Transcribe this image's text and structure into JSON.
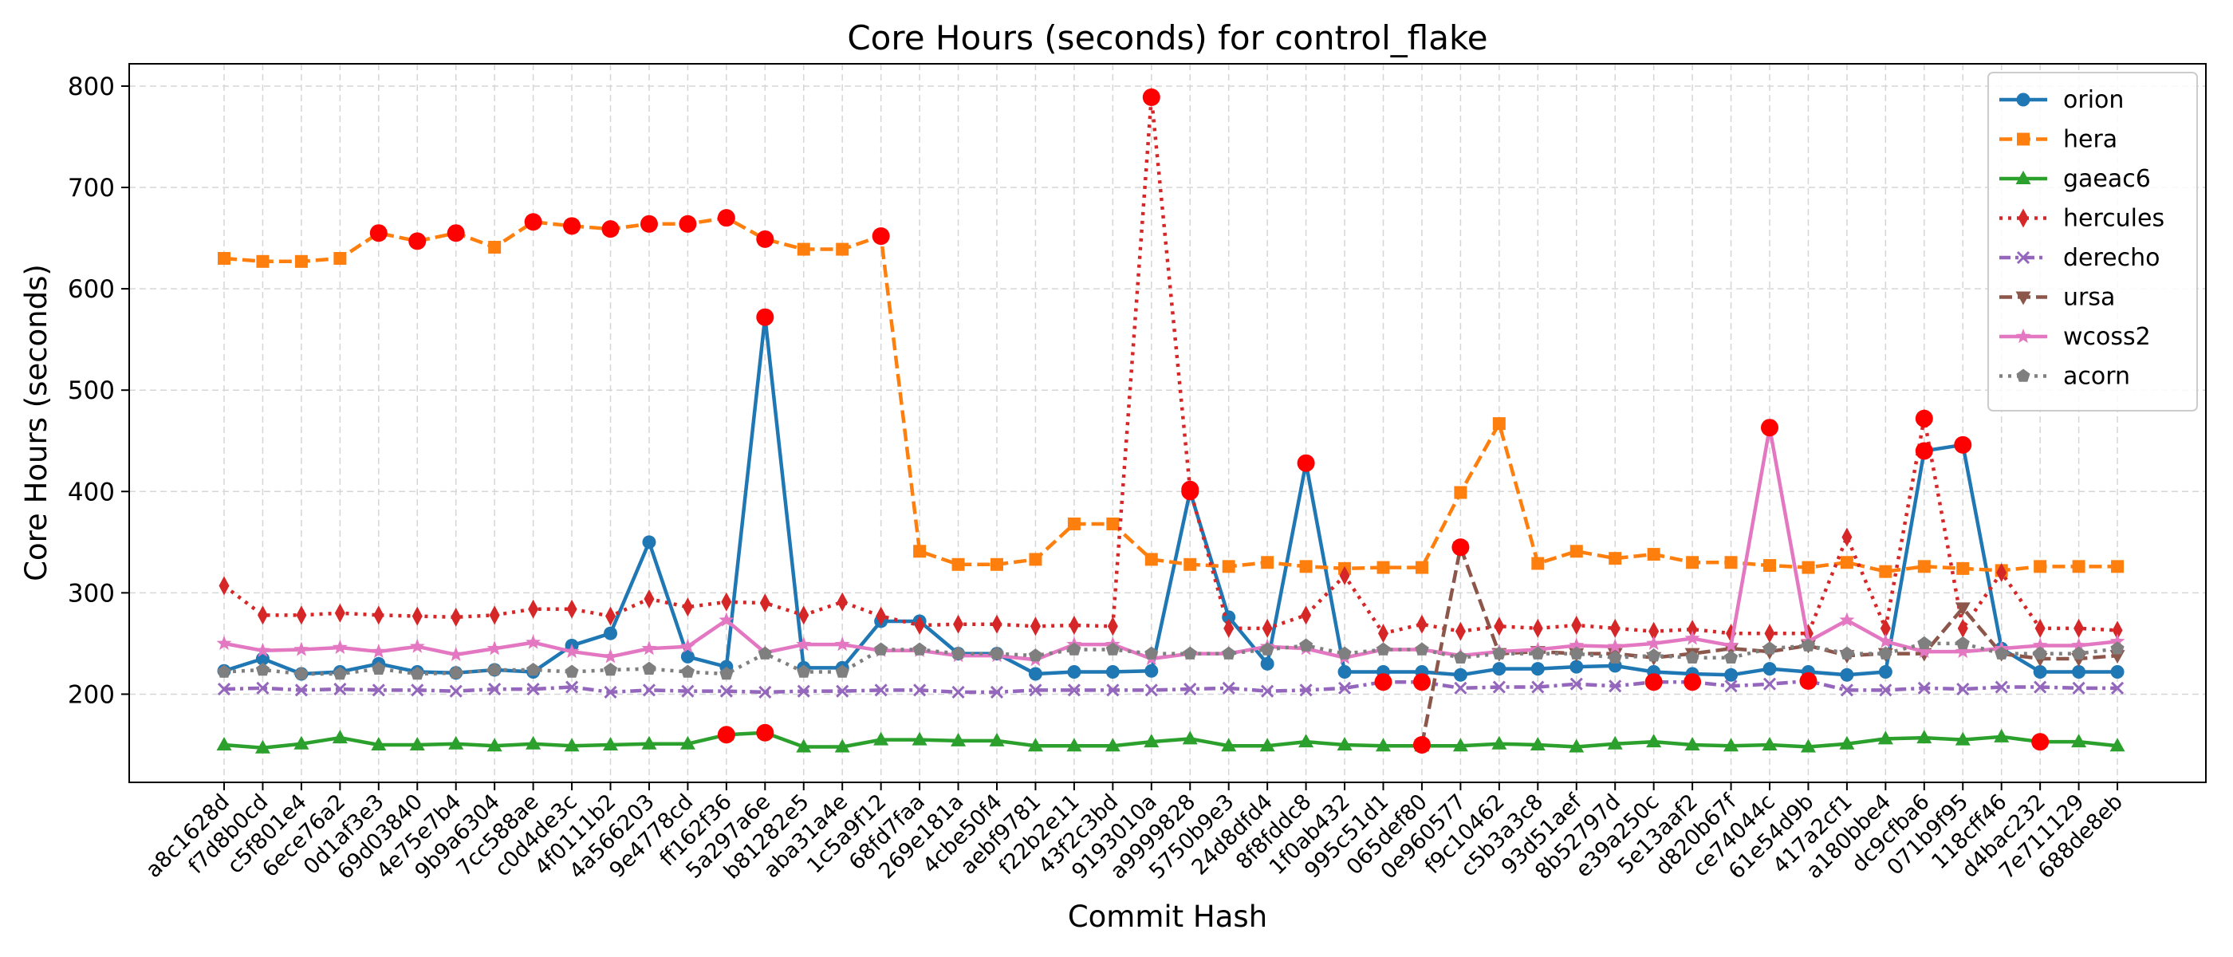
{
  "chart_data": {
    "type": "line",
    "title": "Core Hours (seconds) for control_flake",
    "xlabel": "Commit Hash",
    "ylabel": "Core Hours (seconds)",
    "ylim": [
      113,
      822
    ],
    "yticks": [
      200,
      300,
      400,
      500,
      600,
      700,
      800
    ],
    "grid": true,
    "legend_position": "top-right",
    "outlier_color": "#ff0000",
    "categories": [
      "a8c1628d",
      "f7d8b0cd",
      "c5f801e4",
      "6ece76a2",
      "0d1af3e3",
      "69d03840",
      "4e75e7b4",
      "9b9a6304",
      "7cc588ae",
      "c0d4de3c",
      "4f0111b2",
      "4a566203",
      "9e4778cd",
      "ff162f36",
      "5a297a6e",
      "b81282e5",
      "aba31a4e",
      "1c5a9f12",
      "68fd7faa",
      "269e181a",
      "4cbe50f4",
      "aebf9781",
      "f22b2e11",
      "43f2c3bd",
      "9193010a",
      "a9999828",
      "5750b9e3",
      "24d8dfd4",
      "8f8fddc8",
      "1f0ab432",
      "995c51d1",
      "065def80",
      "0e960577",
      "f9c10462",
      "c5b3a3c8",
      "93d51aef",
      "8b52797d",
      "e39a250c",
      "5e13aaf2",
      "d820b67f",
      "ce74044c",
      "61e54d9b",
      "417a2cf1",
      "a180bbe4",
      "dc9cfba6",
      "071b9f95",
      "118cff46",
      "d4bac232",
      "7e711129",
      "688de8eb"
    ],
    "series": [
      {
        "name": "orion",
        "color": "#1f77b4",
        "dash": "solid",
        "marker": "circle",
        "values": [
          223,
          235,
          220,
          222,
          230,
          222,
          221,
          224,
          222,
          248,
          260,
          350,
          237,
          227,
          572,
          226,
          226,
          272,
          272,
          240,
          240,
          220,
          222,
          222,
          223,
          400,
          276,
          230,
          428,
          222,
          222,
          222,
          219,
          225,
          225,
          227,
          228,
          222,
          220,
          219,
          225,
          222,
          219,
          222,
          440,
          446,
          245,
          222,
          222,
          222
        ],
        "outliers": [
          14,
          25,
          28,
          44,
          45
        ]
      },
      {
        "name": "hera",
        "color": "#ff7f0e",
        "dash": "dashed",
        "marker": "square",
        "values": [
          630,
          627,
          627,
          630,
          655,
          647,
          655,
          641,
          666,
          662,
          659,
          664,
          664,
          670,
          649,
          639,
          639,
          652,
          341,
          328,
          328,
          333,
          368,
          368,
          333,
          328,
          326,
          330,
          326,
          324,
          325,
          325,
          399,
          467,
          329,
          341,
          334,
          338,
          330,
          330,
          327,
          325,
          330,
          321,
          326,
          324,
          322,
          326,
          326,
          326
        ],
        "outliers": [
          4,
          5,
          6,
          8,
          9,
          10,
          11,
          12,
          13,
          14,
          17
        ]
      },
      {
        "name": "gaeac6",
        "color": "#2ca02c",
        "dash": "solid",
        "marker": "triangle-up",
        "values": [
          150,
          147,
          151,
          157,
          150,
          150,
          151,
          149,
          151,
          149,
          150,
          151,
          151,
          160,
          162,
          148,
          148,
          155,
          155,
          154,
          154,
          149,
          149,
          149,
          153,
          156,
          149,
          149,
          153,
          150,
          149,
          149,
          149,
          151,
          150,
          148,
          151,
          153,
          150,
          149,
          150,
          148,
          151,
          156,
          157,
          155,
          158,
          153,
          153,
          149
        ],
        "outliers": [
          13,
          14,
          47
        ]
      },
      {
        "name": "hercules",
        "color": "#d62728",
        "dash": "dotted",
        "marker": "thin-diamond",
        "values": [
          307,
          278,
          278,
          280,
          278,
          277,
          276,
          278,
          284,
          284,
          277,
          294,
          286,
          291,
          290,
          278,
          291,
          277,
          268,
          269,
          269,
          267,
          268,
          267,
          789,
          402,
          265,
          265,
          278,
          317,
          260,
          269,
          262,
          267,
          265,
          268,
          265,
          262,
          264,
          260,
          260,
          260,
          355,
          265,
          472,
          265,
          320,
          265,
          265,
          263
        ],
        "outliers": [
          24,
          25,
          44
        ]
      },
      {
        "name": "derecho",
        "color": "#9467bd",
        "dash": "dashdot",
        "marker": "x",
        "values": [
          205,
          206,
          204,
          205,
          204,
          204,
          203,
          205,
          205,
          207,
          202,
          204,
          203,
          203,
          202,
          203,
          203,
          204,
          204,
          202,
          202,
          204,
          204,
          204,
          204,
          205,
          206,
          203,
          204,
          206,
          212,
          212,
          206,
          207,
          207,
          210,
          208,
          212,
          212,
          208,
          210,
          213,
          204,
          204,
          206,
          205,
          207,
          207,
          206,
          206
        ],
        "outliers": [
          30,
          31,
          37,
          38,
          41
        ]
      },
      {
        "name": "ursa",
        "color": "#8c564b",
        "dash": "dashed",
        "marker": "triangle-down",
        "values": [
          null,
          null,
          null,
          null,
          null,
          null,
          null,
          null,
          null,
          null,
          null,
          null,
          null,
          null,
          null,
          null,
          null,
          null,
          null,
          null,
          null,
          null,
          null,
          null,
          null,
          null,
          null,
          null,
          null,
          null,
          null,
          150,
          345,
          240,
          242,
          240,
          240,
          236,
          240,
          245,
          242,
          248,
          238,
          240,
          240,
          285,
          240,
          235,
          235,
          238
        ],
        "outliers": [
          31,
          32
        ]
      },
      {
        "name": "wcoss2",
        "color": "#e377c2",
        "dash": "solid",
        "marker": "star",
        "values": [
          250,
          243,
          244,
          246,
          242,
          247,
          239,
          245,
          251,
          242,
          237,
          245,
          247,
          273,
          241,
          249,
          249,
          243,
          243,
          238,
          238,
          234,
          249,
          249,
          235,
          240,
          240,
          247,
          245,
          236,
          244,
          244,
          238,
          242,
          244,
          248,
          247,
          250,
          255,
          248,
          463,
          252,
          273,
          252,
          242,
          242,
          245,
          248,
          248,
          252
        ],
        "outliers": [
          40
        ]
      },
      {
        "name": "acorn",
        "color": "#7f7f7f",
        "dash": "dotted",
        "marker": "pentagon",
        "values": [
          222,
          224,
          220,
          220,
          225,
          220,
          221,
          224,
          224,
          222,
          224,
          225,
          222,
          220,
          240,
          222,
          222,
          244,
          244,
          240,
          240,
          238,
          244,
          244,
          240,
          240,
          240,
          244,
          248,
          240,
          244,
          244,
          236,
          240,
          240,
          240,
          236,
          238,
          236,
          236,
          245,
          248,
          240,
          240,
          250,
          250,
          240,
          240,
          240,
          245
        ],
        "outliers": []
      }
    ]
  }
}
